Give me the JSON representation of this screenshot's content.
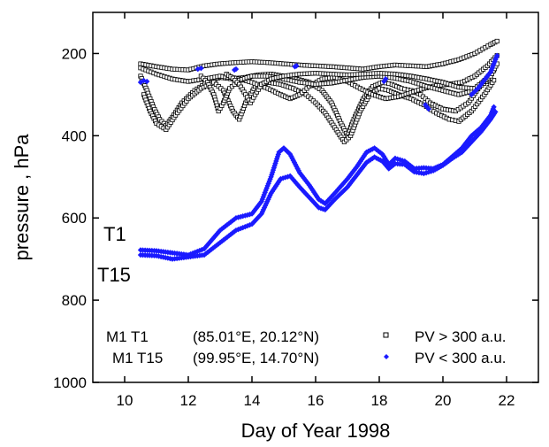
{
  "chart_data": {
    "type": "scatter",
    "xlabel": "Day of Year 1998",
    "ylabel": "pressure ,  hPa",
    "xlim": [
      9,
      23
    ],
    "ylim": [
      1000,
      100
    ],
    "y_inverted": true,
    "xticks": [
      10,
      12,
      14,
      16,
      18,
      20,
      22
    ],
    "yticks": [
      200,
      400,
      600,
      800,
      1000
    ],
    "grid": false,
    "legend": {
      "placement": "bottom",
      "rows": [
        {
          "label": "M1 T1",
          "coords": "(85.01°E, 20.12°N)",
          "marker": "open-square",
          "series_label": "PV > 300 a.u."
        },
        {
          "label": "M1 T15",
          "coords": "(99.95°E, 14.70°N)",
          "marker": "blue-diamond",
          "series_label": "PV < 300 a.u."
        }
      ]
    },
    "annotations": [
      {
        "text": "T1",
        "x": 9.9,
        "y": 660
      },
      {
        "text": "T15",
        "x": 10.0,
        "y": 755
      }
    ],
    "colors": {
      "high_pv": "#000000",
      "low_pv": "#1a1aff"
    },
    "series": [
      {
        "name": "PV > 300 a.u.",
        "marker": "open-square",
        "traj": [
          [
            [
              10.5,
              225
            ],
            [
              11,
              232
            ],
            [
              11.5,
              238
            ],
            [
              12,
              240
            ],
            [
              12.5,
              230
            ],
            [
              13,
              225
            ],
            [
              13.5,
              222
            ],
            [
              14,
              220
            ],
            [
              14.5,
              222
            ],
            [
              15,
              225
            ],
            [
              15.5,
              228
            ],
            [
              16,
              230
            ],
            [
              16.5,
              232
            ],
            [
              17,
              235
            ],
            [
              17.5,
              238
            ],
            [
              18,
              232
            ],
            [
              18.5,
              228
            ],
            [
              19,
              230
            ],
            [
              19.5,
              232
            ],
            [
              20,
              225
            ],
            [
              20.5,
              215
            ],
            [
              21,
              200
            ],
            [
              21.5,
              178
            ],
            [
              21.7,
              170
            ]
          ],
          [
            [
              10.5,
              255
            ],
            [
              10.7,
              290
            ],
            [
              10.9,
              330
            ],
            [
              11.1,
              360
            ],
            [
              11.3,
              375
            ],
            [
              11.5,
              355
            ],
            [
              11.8,
              320
            ],
            [
              12.2,
              290
            ],
            [
              12.6,
              270
            ],
            [
              13,
              258
            ],
            [
              13.4,
              262
            ],
            [
              13.8,
              258
            ],
            [
              14.2,
              252
            ],
            [
              14.6,
              250
            ],
            [
              15,
              255
            ],
            [
              15.4,
              262
            ],
            [
              15.8,
              270
            ],
            [
              16.2,
              290
            ],
            [
              16.5,
              320
            ],
            [
              16.8,
              370
            ],
            [
              17,
              400
            ],
            [
              17.2,
              360
            ],
            [
              17.5,
              310
            ],
            [
              17.8,
              280
            ],
            [
              18.1,
              270
            ],
            [
              18.4,
              275
            ],
            [
              18.7,
              285
            ],
            [
              19,
              290
            ],
            [
              19.3,
              300
            ],
            [
              19.6,
              320
            ],
            [
              20,
              335
            ],
            [
              20.4,
              340
            ],
            [
              20.8,
              320
            ],
            [
              21.2,
              275
            ],
            [
              21.6,
              240
            ]
          ],
          [
            [
              10.6,
              300
            ],
            [
              10.8,
              340
            ],
            [
              11,
              370
            ],
            [
              11.3,
              385
            ],
            [
              11.6,
              350
            ],
            [
              12,
              310
            ],
            [
              12.4,
              285
            ],
            [
              12.8,
              270
            ],
            [
              13.1,
              290
            ],
            [
              13.4,
              340
            ],
            [
              13.6,
              360
            ],
            [
              13.8,
              320
            ],
            [
              14.1,
              280
            ],
            [
              14.5,
              270
            ],
            [
              14.9,
              275
            ],
            [
              15.3,
              285
            ],
            [
              15.7,
              300
            ],
            [
              16,
              320
            ],
            [
              16.3,
              345
            ],
            [
              16.6,
              380
            ],
            [
              16.9,
              415
            ],
            [
              17.1,
              400
            ],
            [
              17.4,
              340
            ],
            [
              17.7,
              300
            ],
            [
              18,
              285
            ],
            [
              18.3,
              290
            ],
            [
              18.6,
              300
            ],
            [
              19,
              310
            ],
            [
              19.4,
              325
            ],
            [
              19.8,
              345
            ],
            [
              20.2,
              360
            ],
            [
              20.5,
              365
            ],
            [
              20.9,
              340
            ],
            [
              21.3,
              300
            ],
            [
              21.6,
              265
            ]
          ],
          [
            [
              10.5,
              235
            ],
            [
              11,
              250
            ],
            [
              11.5,
              262
            ],
            [
              12,
              268
            ],
            [
              12.5,
              262
            ],
            [
              13,
              255
            ],
            [
              13.5,
              260
            ],
            [
              14,
              270
            ],
            [
              14.5,
              285
            ],
            [
              14.9,
              300
            ],
            [
              15.2,
              310
            ],
            [
              15.5,
              300
            ],
            [
              15.8,
              280
            ],
            [
              16.2,
              262
            ],
            [
              16.6,
              258
            ],
            [
              17,
              268
            ],
            [
              17.4,
              285
            ],
            [
              17.8,
              300
            ],
            [
              18.2,
              310
            ],
            [
              18.6,
              305
            ],
            [
              19,
              295
            ],
            [
              19.4,
              285
            ],
            [
              19.8,
              278
            ],
            [
              20.2,
              275
            ],
            [
              20.6,
              270
            ],
            [
              21,
              255
            ],
            [
              21.4,
              230
            ],
            [
              21.7,
              205
            ]
          ],
          [
            [
              12.4,
              255
            ],
            [
              12.6,
              270
            ],
            [
              12.8,
              300
            ],
            [
              12.95,
              340
            ],
            [
              13.1,
              320
            ],
            [
              13.3,
              285
            ],
            [
              13.6,
              265
            ],
            [
              14,
              255
            ],
            [
              14.5,
              255
            ],
            [
              15,
              262
            ],
            [
              15.5,
              270
            ],
            [
              16,
              275
            ],
            [
              16.5,
              272
            ],
            [
              17,
              265
            ],
            [
              17.5,
              258
            ],
            [
              18,
              255
            ],
            [
              18.5,
              260
            ],
            [
              19,
              268
            ],
            [
              19.5,
              280
            ],
            [
              20,
              290
            ],
            [
              20.5,
              300
            ],
            [
              21,
              290
            ],
            [
              21.5,
              260
            ]
          ],
          [
            [
              13.2,
              250
            ],
            [
              13.4,
              260
            ],
            [
              13.6,
              275
            ],
            [
              13.8,
              300
            ],
            [
              13.95,
              320
            ],
            [
              14.1,
              300
            ],
            [
              14.3,
              275
            ],
            [
              14.6,
              262
            ],
            [
              15,
              255
            ],
            [
              15.5,
              250
            ],
            [
              16,
              248
            ],
            [
              16.5,
              250
            ],
            [
              17,
              252
            ],
            [
              17.5,
              250
            ],
            [
              18,
              248
            ],
            [
              18.5,
              250
            ],
            [
              19,
              255
            ],
            [
              19.5,
              262
            ],
            [
              20,
              270
            ],
            [
              20.5,
              282
            ],
            [
              21,
              285
            ],
            [
              21.5,
              255
            ],
            [
              21.7,
              225
            ]
          ]
        ]
      },
      {
        "name": "PV < 300 a.u.",
        "marker": "blue-diamond",
        "points": [
          [
            10.5,
            270
          ],
          [
            10.6,
            266
          ],
          [
            10.7,
            268
          ],
          [
            12.3,
            238
          ],
          [
            12.4,
            236
          ],
          [
            13.45,
            240
          ],
          [
            13.5,
            238
          ],
          [
            15.35,
            232
          ],
          [
            15.4,
            230
          ],
          [
            18.15,
            268
          ],
          [
            18.2,
            262
          ],
          [
            19.45,
            325
          ],
          [
            19.5,
            330
          ],
          [
            19.55,
            335
          ]
        ],
        "traj": [
          [
            [
              10.5,
              678
            ],
            [
              11,
              680
            ],
            [
              11.5,
              685
            ],
            [
              12,
              690
            ],
            [
              12.5,
              675
            ],
            [
              13,
              630
            ],
            [
              13.5,
              600
            ],
            [
              14,
              590
            ],
            [
              14.3,
              560
            ],
            [
              14.6,
              500
            ],
            [
              14.85,
              440
            ],
            [
              15,
              430
            ],
            [
              15.2,
              445
            ],
            [
              15.5,
              490
            ],
            [
              15.8,
              520
            ],
            [
              16.1,
              555
            ],
            [
              16.3,
              565
            ],
            [
              16.6,
              540
            ],
            [
              17,
              505
            ],
            [
              17.3,
              475
            ],
            [
              17.6,
              440
            ],
            [
              17.85,
              430
            ],
            [
              18.1,
              445
            ],
            [
              18.3,
              470
            ],
            [
              18.5,
              455
            ],
            [
              18.8,
              462
            ],
            [
              19.1,
              480
            ],
            [
              19.4,
              478
            ],
            [
              19.7,
              480
            ],
            [
              20,
              470
            ],
            [
              20.3,
              450
            ],
            [
              20.6,
              430
            ],
            [
              20.9,
              400
            ],
            [
              21.2,
              380
            ],
            [
              21.5,
              350
            ],
            [
              21.6,
              330
            ]
          ],
          [
            [
              10.5,
              690
            ],
            [
              11,
              692
            ],
            [
              11.5,
              700
            ],
            [
              12,
              695
            ],
            [
              12.5,
              690
            ],
            [
              13,
              660
            ],
            [
              13.5,
              630
            ],
            [
              14,
              615
            ],
            [
              14.3,
              590
            ],
            [
              14.6,
              540
            ],
            [
              14.9,
              505
            ],
            [
              15.2,
              498
            ],
            [
              15.5,
              525
            ],
            [
              15.8,
              550
            ],
            [
              16.1,
              575
            ],
            [
              16.3,
              580
            ],
            [
              16.6,
              555
            ],
            [
              17,
              525
            ],
            [
              17.3,
              495
            ],
            [
              17.6,
              465
            ],
            [
              17.85,
              452
            ],
            [
              18.1,
              462
            ],
            [
              18.3,
              480
            ],
            [
              18.5,
              468
            ],
            [
              18.8,
              470
            ],
            [
              19.1,
              488
            ],
            [
              19.4,
              492
            ],
            [
              19.7,
              485
            ],
            [
              20,
              472
            ],
            [
              20.3,
              455
            ],
            [
              20.6,
              440
            ],
            [
              20.9,
              415
            ],
            [
              21.2,
              390
            ],
            [
              21.5,
              360
            ],
            [
              21.65,
              342
            ]
          ],
          [
            [
              20.9,
              300
            ],
            [
              21.1,
              285
            ],
            [
              21.3,
              265
            ],
            [
              21.5,
              245
            ],
            [
              21.6,
              225
            ],
            [
              21.7,
              205
            ]
          ]
        ]
      }
    ]
  }
}
